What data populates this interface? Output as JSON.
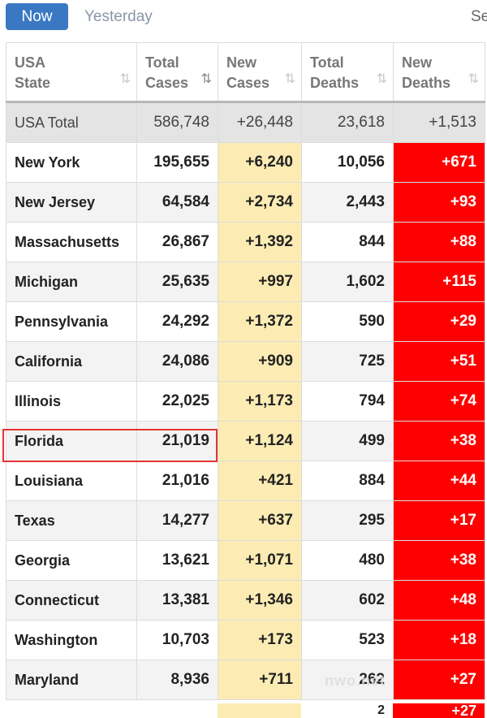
{
  "tabs": {
    "now": "Now",
    "yesterday": "Yesterday",
    "more": "Se"
  },
  "table": {
    "headers": [
      {
        "line1": "USA",
        "line2": "State",
        "sort": "⇅",
        "active": false
      },
      {
        "line1": "Total",
        "line2": "Cases",
        "sort": "⇅",
        "active": true
      },
      {
        "line1": "New",
        "line2": "Cases",
        "sort": "⇅",
        "active": false
      },
      {
        "line1": "Total",
        "line2": "Deaths",
        "sort": "⇅",
        "active": false
      },
      {
        "line1": "New",
        "line2": "Deaths",
        "sort": "⇅",
        "active": false
      }
    ],
    "total": {
      "state": "USA Total",
      "total_cases": "586,748",
      "new_cases": "+26,448",
      "total_deaths": "23,618",
      "new_deaths": "+1,513"
    },
    "rows": [
      {
        "state": "New York",
        "total_cases": "195,655",
        "new_cases": "+6,240",
        "total_deaths": "10,056",
        "new_deaths": "+671"
      },
      {
        "state": "New Jersey",
        "total_cases": "64,584",
        "new_cases": "+2,734",
        "total_deaths": "2,443",
        "new_deaths": "+93"
      },
      {
        "state": "Massachusetts",
        "total_cases": "26,867",
        "new_cases": "+1,392",
        "total_deaths": "844",
        "new_deaths": "+88"
      },
      {
        "state": "Michigan",
        "total_cases": "25,635",
        "new_cases": "+997",
        "total_deaths": "1,602",
        "new_deaths": "+115"
      },
      {
        "state": "Pennsylvania",
        "total_cases": "24,292",
        "new_cases": "+1,372",
        "total_deaths": "590",
        "new_deaths": "+29"
      },
      {
        "state": "California",
        "total_cases": "24,086",
        "new_cases": "+909",
        "total_deaths": "725",
        "new_deaths": "+51"
      },
      {
        "state": "Illinois",
        "total_cases": "22,025",
        "new_cases": "+1,173",
        "total_deaths": "794",
        "new_deaths": "+74"
      },
      {
        "state": "Florida",
        "total_cases": "21,019",
        "new_cases": "+1,124",
        "total_deaths": "499",
        "new_deaths": "+38"
      },
      {
        "state": "Louisiana",
        "total_cases": "21,016",
        "new_cases": "+421",
        "total_deaths": "884",
        "new_deaths": "+44"
      },
      {
        "state": "Texas",
        "total_cases": "14,277",
        "new_cases": "+637",
        "total_deaths": "295",
        "new_deaths": "+17"
      },
      {
        "state": "Georgia",
        "total_cases": "13,621",
        "new_cases": "+1,071",
        "total_deaths": "480",
        "new_deaths": "+38"
      },
      {
        "state": "Connecticut",
        "total_cases": "13,381",
        "new_cases": "+1,346",
        "total_deaths": "602",
        "new_deaths": "+48"
      },
      {
        "state": "Washington",
        "total_cases": "10,703",
        "new_cases": "+173",
        "total_deaths": "523",
        "new_deaths": "+18"
      },
      {
        "state": "Maryland",
        "total_cases": "8,936",
        "new_cases": "+711",
        "total_deaths": "262",
        "new_deaths": "+27"
      }
    ],
    "partial_row": {
      "total_deaths": "2",
      "new_deaths": "+27"
    }
  },
  "watermark": "nwo.net",
  "colors": {
    "tab_active": "#3a78c4",
    "new_cases_bg": "#fcecb4",
    "new_deaths_bg": "#ff0000",
    "highlight": "#e63333"
  }
}
